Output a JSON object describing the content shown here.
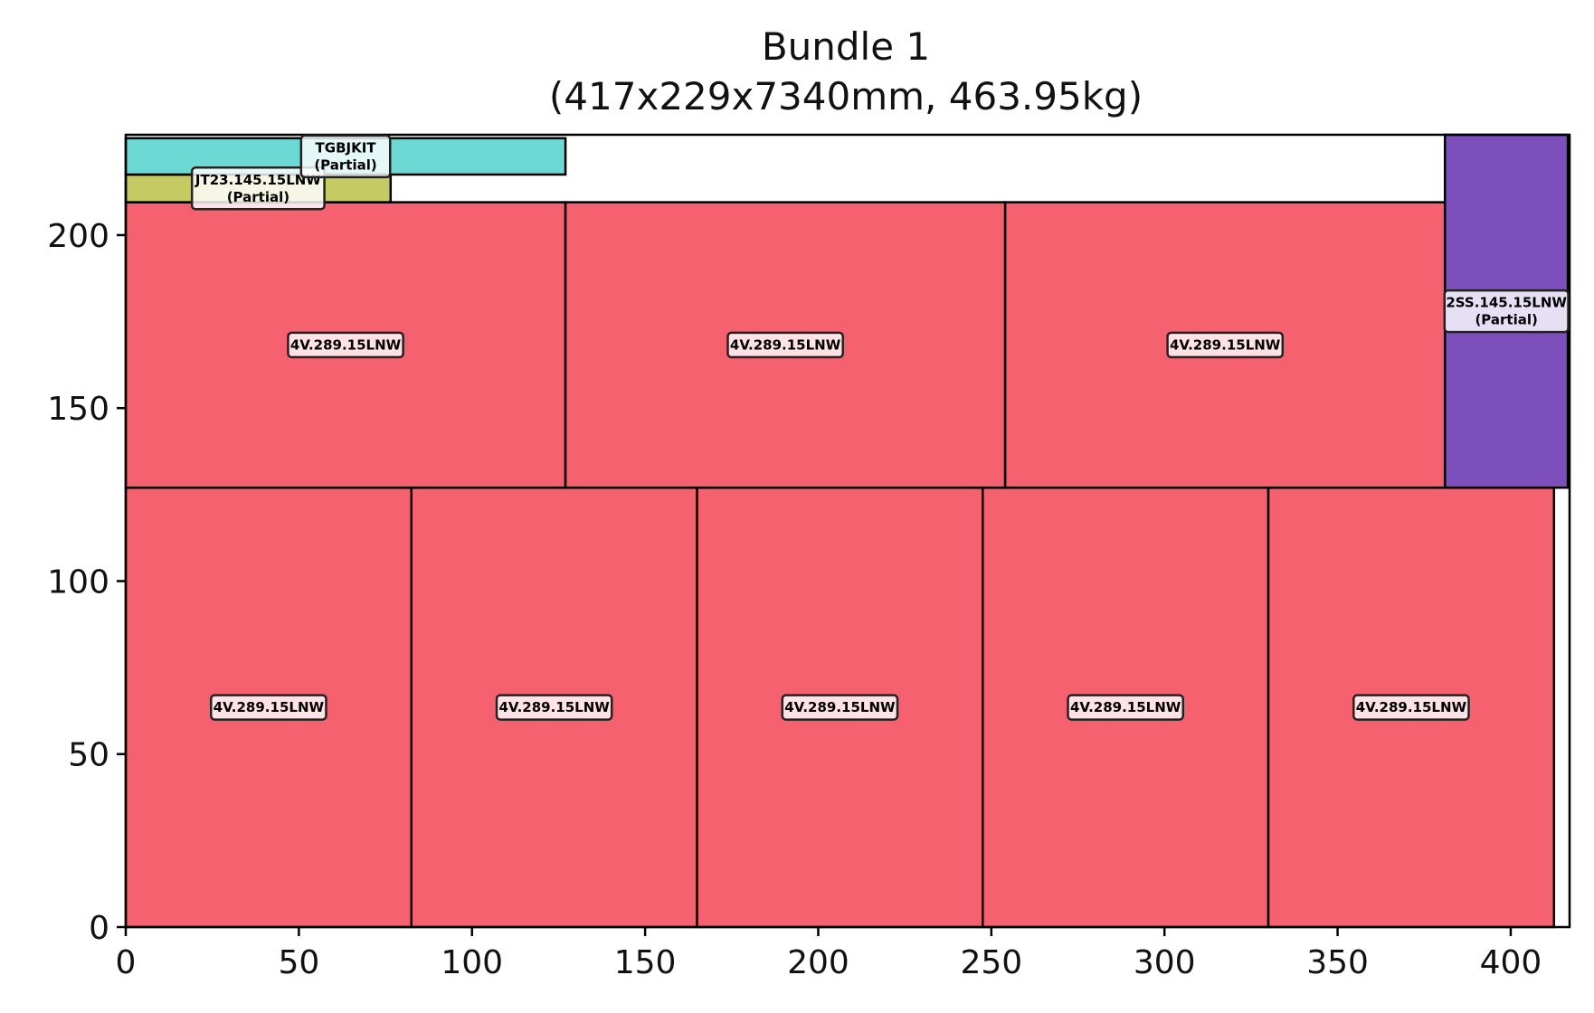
{
  "chart_data": {
    "type": "bar",
    "chart_kind": "packing-layout",
    "title": "Bundle 1",
    "subtitle": "(417x229x7340mm, 463.95kg)",
    "xlabel": "",
    "ylabel": "",
    "xlim": [
      0,
      417
    ],
    "ylim": [
      0,
      229
    ],
    "xticks": [
      0,
      50,
      100,
      150,
      200,
      250,
      300,
      350,
      400
    ],
    "yticks": [
      0,
      50,
      100,
      150,
      200
    ],
    "grid": false,
    "items": [
      {
        "label": "4V.289.15LNW",
        "x": 0,
        "y": 0,
        "w": 82.5,
        "h": 127,
        "color": "#f66170"
      },
      {
        "label": "4V.289.15LNW",
        "x": 82.5,
        "y": 0,
        "w": 82.5,
        "h": 127,
        "color": "#f66170"
      },
      {
        "label": "4V.289.15LNW",
        "x": 165,
        "y": 0,
        "w": 82.5,
        "h": 127,
        "color": "#f66170"
      },
      {
        "label": "4V.289.15LNW",
        "x": 247.5,
        "y": 0,
        "w": 82.5,
        "h": 127,
        "color": "#f66170"
      },
      {
        "label": "4V.289.15LNW",
        "x": 330,
        "y": 0,
        "w": 82.5,
        "h": 127,
        "color": "#f66170"
      },
      {
        "label": "4V.289.15LNW",
        "x": 0,
        "y": 127,
        "w": 127,
        "h": 82.5,
        "color": "#f66170"
      },
      {
        "label": "4V.289.15LNW",
        "x": 127,
        "y": 127,
        "w": 127,
        "h": 82.5,
        "color": "#f66170"
      },
      {
        "label": "4V.289.15LNW",
        "x": 254,
        "y": 127,
        "w": 127,
        "h": 82.5,
        "color": "#f66170"
      },
      {
        "label": "2SS.145.15LNW",
        "sublabel": "(Partial)",
        "x": 381,
        "y": 127,
        "w": 35.5,
        "h": 102,
        "color": "#7d4fbd"
      },
      {
        "label": "JT23.145.15LNW",
        "sublabel": "(Partial)",
        "x": 0,
        "y": 209.5,
        "w": 76.5,
        "h": 8,
        "color": "#c6ca63"
      },
      {
        "label": "TGBJKIT",
        "sublabel": "(Partial)",
        "x": 0,
        "y": 217.5,
        "w": 127,
        "h": 10.5,
        "color": "#6cd9d4"
      }
    ]
  }
}
